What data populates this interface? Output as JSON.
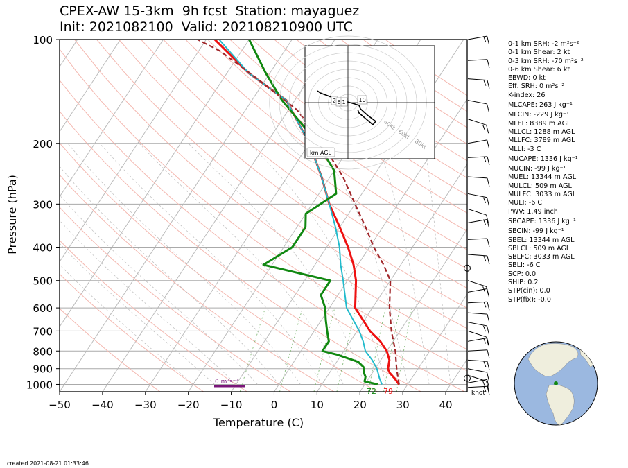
{
  "title": {
    "line1": "CPEX-AW 15-3km  9h fcst  Station: mayaguez",
    "line2": "Init: 2021082100  Valid: 202108210900 UTC"
  },
  "colors": {
    "temperature": "#ee1111",
    "dewpoint": "#118811",
    "wetbulb": "#22bbcc",
    "parcel": "#a0262a",
    "srh_bar": "#7a157a",
    "globe_ocean": "#9bb8e0",
    "globe_land": "#efeedd"
  },
  "chart_data": {
    "type": "line",
    "title": "CPEX-AW 15-3km  9h fcst  Station: mayaguez",
    "xlabel": "Temperature (C)",
    "ylabel": "Pressure (hPa)",
    "xlim": [
      -50,
      45
    ],
    "ylim": [
      1050,
      100
    ],
    "log_y": true,
    "skew": true,
    "x_ticks": [
      -50,
      -40,
      -30,
      -20,
      -10,
      0,
      10,
      20,
      30,
      40
    ],
    "y_ticks": [
      100,
      200,
      300,
      400,
      500,
      600,
      700,
      800,
      900,
      1000
    ],
    "grid": true,
    "surface_labels": {
      "dewpoint": "72",
      "temperature": "79"
    },
    "srh_label": "0 m²s⁻²",
    "series": [
      {
        "key": "temperature",
        "points": [
          [
            28,
            1000
          ],
          [
            26,
            960
          ],
          [
            24,
            925
          ],
          [
            23,
            900
          ],
          [
            22,
            850
          ],
          [
            20,
            800
          ],
          [
            17,
            750
          ],
          [
            13,
            700
          ],
          [
            6,
            600
          ],
          [
            2,
            500
          ],
          [
            -1,
            450
          ],
          [
            -5,
            400
          ],
          [
            -10,
            350
          ],
          [
            -16,
            300
          ],
          [
            -22,
            250
          ],
          [
            -30,
            200
          ],
          [
            -42,
            150
          ],
          [
            -55,
            125
          ],
          [
            -68,
            100
          ]
        ]
      },
      {
        "key": "wetbulb",
        "points": [
          [
            24,
            1000
          ],
          [
            22.5,
            960
          ],
          [
            21.3,
            925
          ],
          [
            20.4,
            900
          ],
          [
            18,
            850
          ],
          [
            15,
            800
          ],
          [
            13,
            750
          ],
          [
            10.5,
            700
          ],
          [
            4,
            600
          ],
          [
            -1,
            500
          ],
          [
            -4,
            450
          ],
          [
            -7,
            400
          ],
          [
            -11,
            350
          ],
          [
            -16,
            300
          ],
          [
            -22,
            250
          ],
          [
            -30,
            200
          ],
          [
            -42,
            150
          ],
          [
            -55,
            125
          ],
          [
            -67,
            100
          ]
        ]
      },
      {
        "key": "dewpoint",
        "points": [
          [
            23,
            1000
          ],
          [
            19.5,
            980
          ],
          [
            19,
            950
          ],
          [
            18,
            925
          ],
          [
            17,
            890
          ],
          [
            15,
            860
          ],
          [
            9,
            820
          ],
          [
            5,
            800
          ],
          [
            5,
            750
          ],
          [
            3,
            700
          ],
          [
            1,
            650
          ],
          [
            -1,
            600
          ],
          [
            -4,
            550
          ],
          [
            -4,
            500
          ],
          [
            -22,
            450
          ],
          [
            -18,
            400
          ],
          [
            -18,
            350
          ],
          [
            -20,
            320
          ],
          [
            -16,
            280
          ],
          [
            -20,
            240
          ],
          [
            -28,
            200
          ],
          [
            -43,
            150
          ],
          [
            -51,
            125
          ],
          [
            -60,
            100
          ]
        ]
      },
      {
        "key": "parcel",
        "points": [
          [
            28,
            1000
          ],
          [
            25,
            900
          ],
          [
            22,
            800
          ],
          [
            18,
            700
          ],
          [
            14,
            600
          ],
          [
            10,
            500
          ],
          [
            6,
            450
          ],
          [
            1,
            400
          ],
          [
            -4,
            350
          ],
          [
            -10,
            300
          ],
          [
            -17,
            250
          ],
          [
            -27,
            200
          ],
          [
            -38,
            160
          ],
          [
            -52,
            130
          ],
          [
            -65,
            108
          ],
          [
            -72,
            100
          ]
        ]
      }
    ],
    "hodograph": {
      "unit_label": "km AGL",
      "ring_labels": [
        "40kt",
        "60kt",
        "80kt"
      ],
      "height_labels": [
        "10",
        "2",
        "6",
        "1"
      ]
    },
    "wind_unit": "knot"
  },
  "parameters": [
    "0-1 km SRH: -2 m²s⁻²",
    "0-1 km Shear: 2 kt",
    "0-3 km SRH: -70 m²s⁻²",
    "0-6 km Shear: 6 kt",
    "EBWD: 0 kt",
    "Eff. SRH: 0 m²s⁻²",
    "K-index: 26",
    "MLCAPE: 263 J kg⁻¹",
    "MLCIN: -229 J kg⁻¹",
    "MLEL: 8389 m AGL",
    "MLLCL: 1288 m AGL",
    "MLLFC: 3789 m AGL",
    "MLLI: -3 C",
    "MUCAPE: 1336 J kg⁻¹",
    "MUCIN: -99 J kg⁻¹",
    "MUEL: 13344 m AGL",
    "MULCL: 509 m AGL",
    "MULFC: 3033 m AGL",
    "MULI: -6 C",
    "PWV: 1.49 inch",
    "SBCAPE: 1336 J kg⁻¹",
    "SBCIN: -99 J kg⁻¹",
    "SBEL: 13344 m AGL",
    "SBLCL: 509 m AGL",
    "SBLFC: 3033 m AGL",
    "SBLI: -6 C",
    "SCP: 0.0",
    "SHIP: 0.2",
    "STP(cin): 0.0",
    "STP(fix): -0.0"
  ],
  "footer": {
    "created": "created 2021-08-21 01:33:46"
  }
}
